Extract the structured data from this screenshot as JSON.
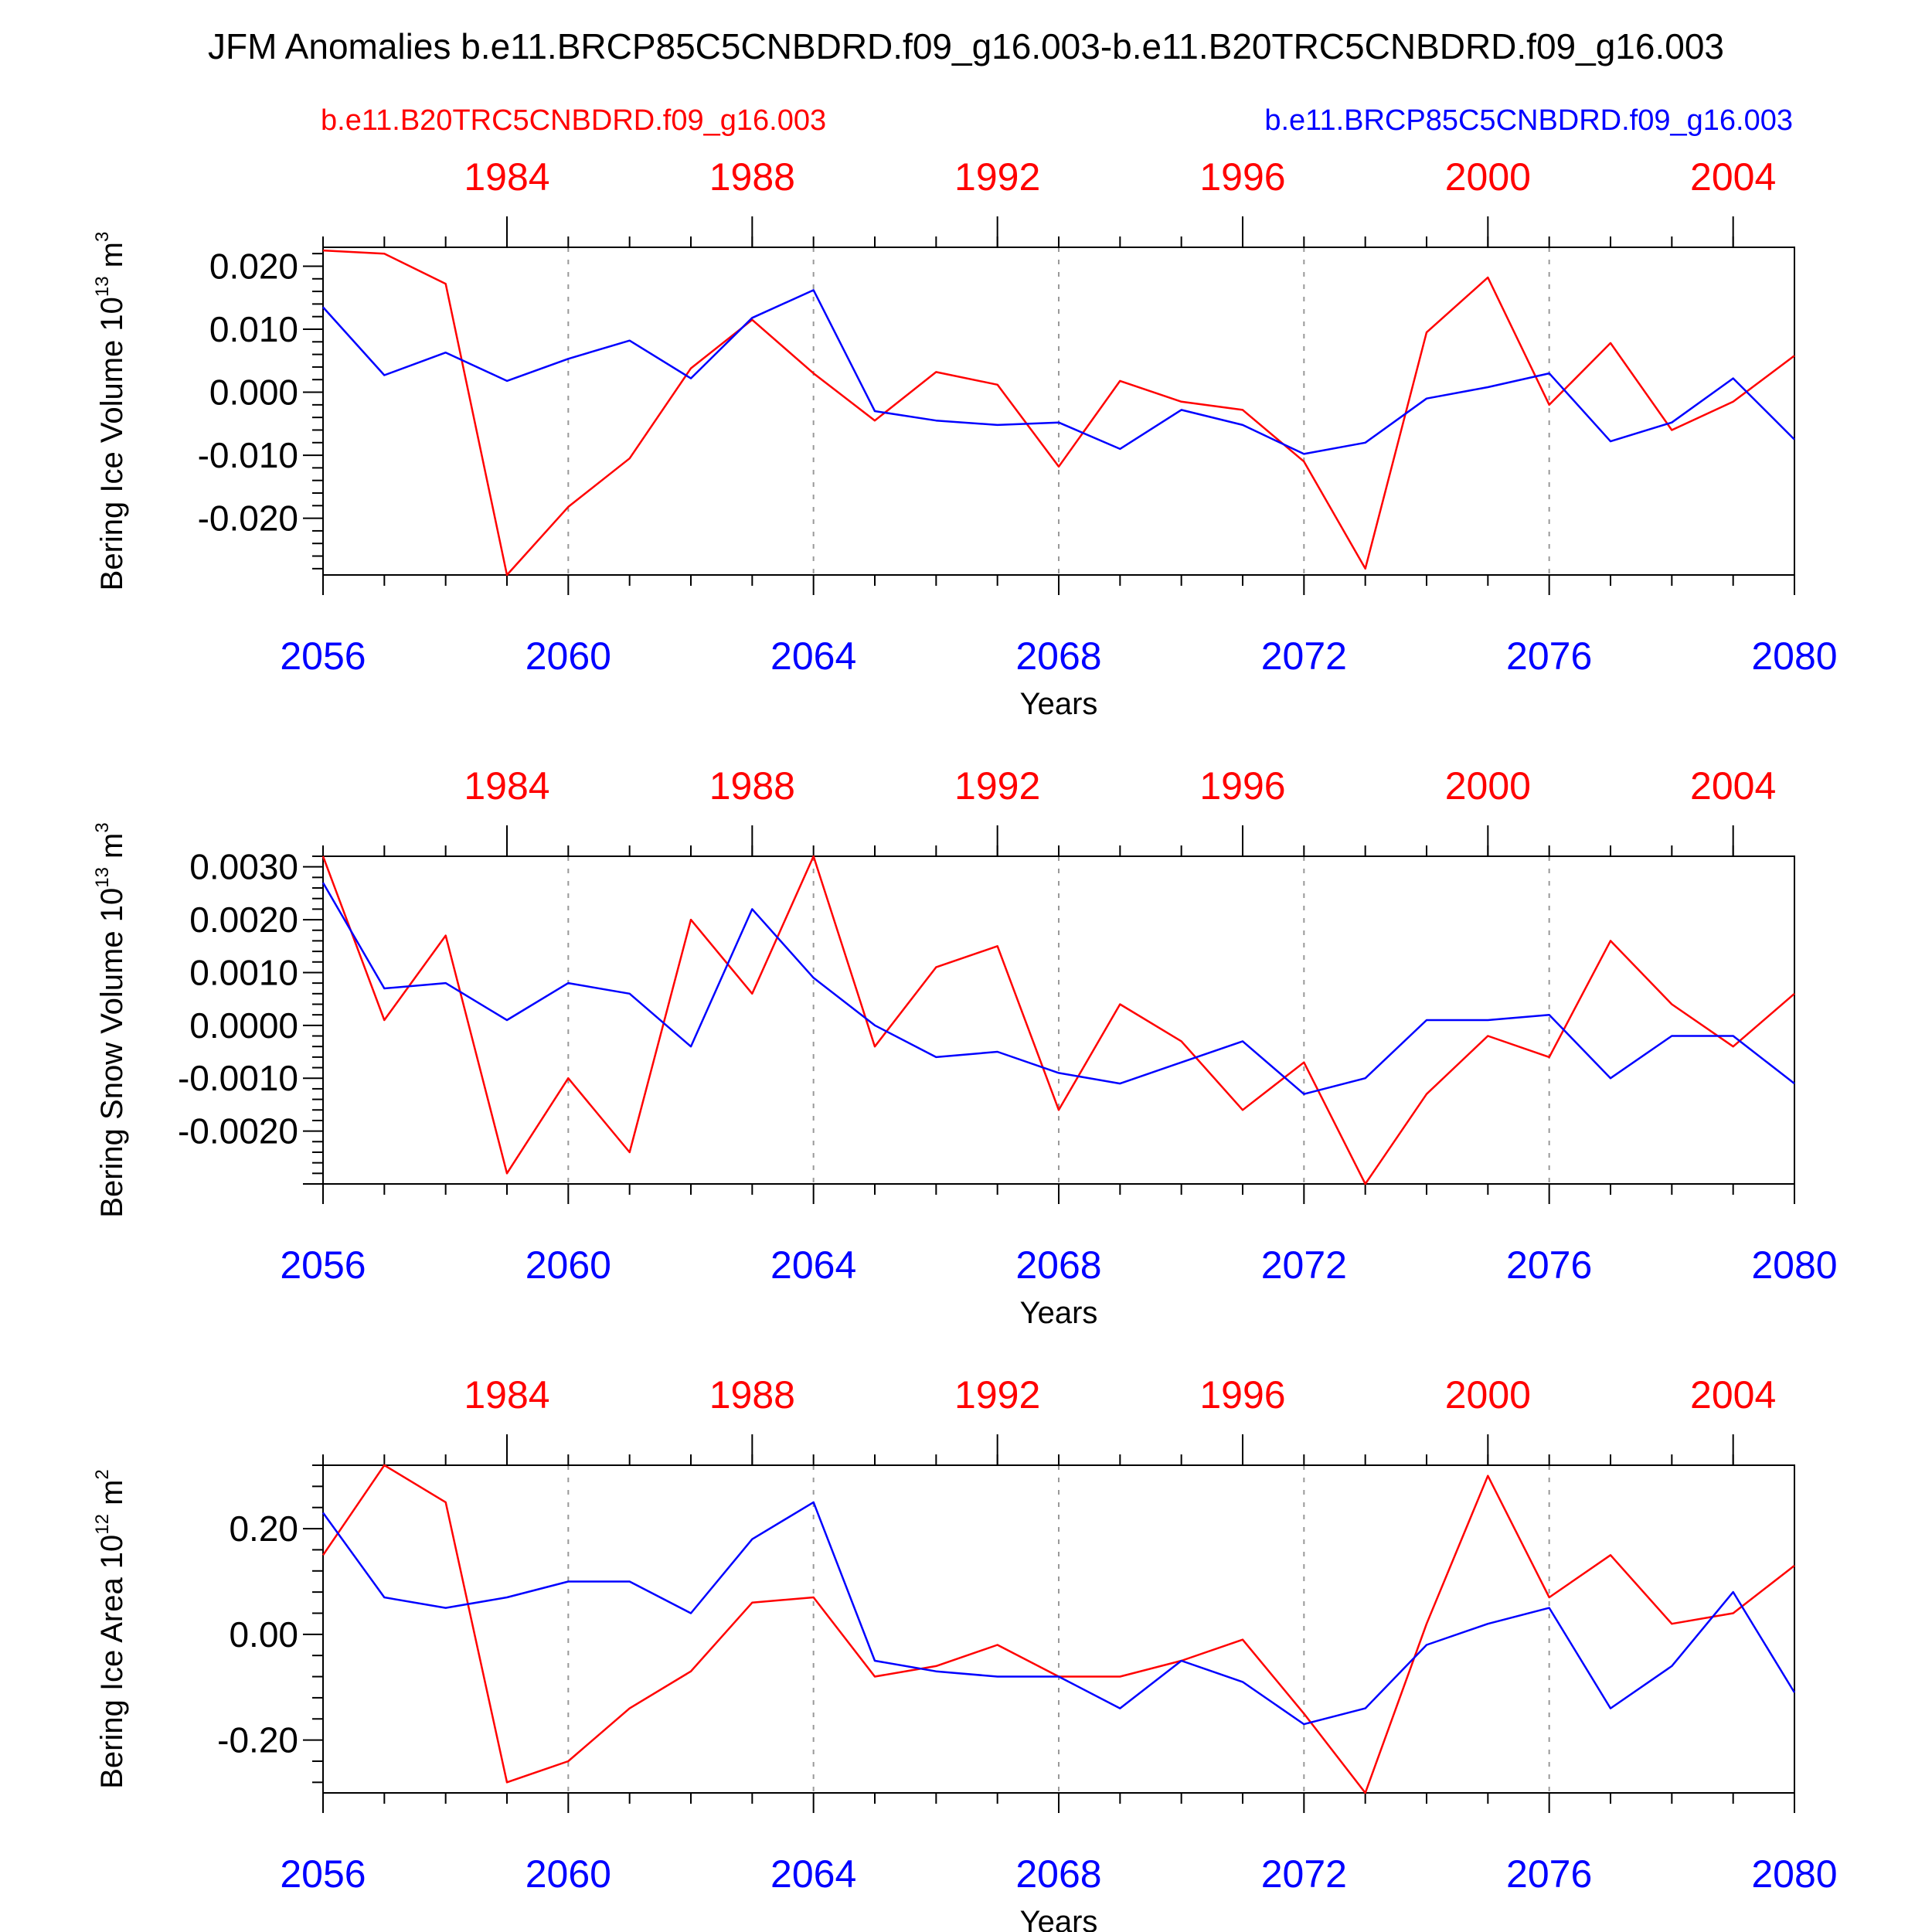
{
  "title": "JFM Anomalies b.e11.BRCP85C5CNBDRD.f09_g16.003-b.e11.B20TRC5CNBDRD.f09_g16.003",
  "legend": {
    "left": "b.e11.B20TRC5CNBDRD.f09_g16.003",
    "right": "b.e11.BRCP85C5CNBDRD.f09_g16.003"
  },
  "colors": {
    "historical": "#ff0000",
    "future": "#0000ff",
    "grid": "#999999",
    "axis": "#000000"
  },
  "chart_data": [
    {
      "type": "line",
      "ylabel": "Bering Ice Volume 10",
      "ylabel_sup": "13",
      "ylabel_unit": " m",
      "ylabel_unit_sup": "3",
      "xlabel": "Years",
      "xlim": [
        2056,
        2080
      ],
      "ylim": [
        -0.029,
        0.023
      ],
      "yticks": [
        "0.020",
        "0.010",
        "0.000",
        "-0.010",
        "-0.020"
      ],
      "ytick_values": [
        0.02,
        0.01,
        0.0,
        -0.01,
        -0.02
      ],
      "bottom_ticks": [
        "2056",
        "2060",
        "2064",
        "2068",
        "2072",
        "2076",
        "2080"
      ],
      "top_ticks": [
        "1984",
        "1988",
        "1992",
        "1996",
        "2000",
        "2004"
      ],
      "x": [
        2056,
        2057,
        2058,
        2059,
        2060,
        2061,
        2062,
        2063,
        2064,
        2065,
        2066,
        2067,
        2068,
        2069,
        2070,
        2071,
        2072,
        2073,
        2074,
        2075,
        2076,
        2077,
        2078,
        2079,
        2080
      ],
      "series": [
        {
          "name": "b.e11.B20TRC5CNBDRD.f09_g16.003",
          "color": "#ff0000",
          "values": [
            0.0225,
            0.022,
            0.0172,
            -0.029,
            -0.0182,
            -0.0105,
            0.0038,
            0.0115,
            0.003,
            -0.0045,
            0.0032,
            0.0012,
            -0.0118,
            0.0018,
            -0.0015,
            -0.0028,
            -0.011,
            -0.028,
            0.0095,
            0.0182,
            -0.002,
            0.0078,
            -0.006,
            -0.0015,
            0.0058
          ]
        },
        {
          "name": "b.e11.BRCP85C5CNBDRD.f09_g16.003",
          "color": "#0000ff",
          "values": [
            0.0135,
            0.0027,
            0.0063,
            0.0018,
            0.0053,
            0.0082,
            0.0022,
            0.0118,
            0.0162,
            -0.003,
            -0.0045,
            -0.0052,
            -0.0048,
            -0.009,
            -0.0028,
            -0.0052,
            -0.0098,
            -0.008,
            -0.001,
            0.0008,
            0.003,
            -0.0078,
            -0.0048,
            0.0022,
            -0.0075
          ]
        }
      ]
    },
    {
      "type": "line",
      "ylabel": "Bering Snow Volume 10",
      "ylabel_sup": "13",
      "ylabel_unit": " m",
      "ylabel_unit_sup": "3",
      "xlabel": "Years",
      "xlim": [
        2056,
        2080
      ],
      "ylim": [
        -0.003,
        0.0032
      ],
      "yticks": [
        "0.0030",
        "0.0020",
        "0.0010",
        "0.0000",
        "-0.0010",
        "-0.0020"
      ],
      "ytick_values": [
        0.003,
        0.002,
        0.001,
        0.0,
        -0.001,
        -0.002
      ],
      "bottom_ticks": [
        "2056",
        "2060",
        "2064",
        "2068",
        "2072",
        "2076",
        "2080"
      ],
      "top_ticks": [
        "1984",
        "1988",
        "1992",
        "1996",
        "2000",
        "2004"
      ],
      "x": [
        2056,
        2057,
        2058,
        2059,
        2060,
        2061,
        2062,
        2063,
        2064,
        2065,
        2066,
        2067,
        2068,
        2069,
        2070,
        2071,
        2072,
        2073,
        2074,
        2075,
        2076,
        2077,
        2078,
        2079,
        2080
      ],
      "series": [
        {
          "name": "b.e11.B20TRC5CNBDRD.f09_g16.003",
          "color": "#ff0000",
          "values": [
            0.0032,
            0.0001,
            0.0017,
            -0.0028,
            -0.001,
            -0.0024,
            0.002,
            0.0006,
            0.0032,
            -0.0004,
            0.0011,
            0.0015,
            -0.0016,
            0.0004,
            -0.0003,
            -0.0016,
            -0.0007,
            -0.003,
            -0.0013,
            -0.0002,
            -0.0006,
            0.0016,
            0.0004,
            -0.0004,
            0.0006
          ]
        },
        {
          "name": "b.e11.BRCP85C5CNBDRD.f09_g16.003",
          "color": "#0000ff",
          "values": [
            0.0027,
            0.0007,
            0.0008,
            0.0001,
            0.0008,
            0.0006,
            -0.0004,
            0.0022,
            0.0009,
            0.0,
            -0.0006,
            -0.0005,
            -0.0009,
            -0.0011,
            -0.0007,
            -0.0003,
            -0.0013,
            -0.001,
            0.0001,
            0.0001,
            0.0002,
            -0.001,
            -0.0002,
            -0.0002,
            -0.0011
          ]
        }
      ]
    },
    {
      "type": "line",
      "ylabel": "Bering Ice Area 10",
      "ylabel_sup": "12",
      "ylabel_unit": " m",
      "ylabel_unit_sup": "2",
      "xlabel": "Years",
      "xlim": [
        2056,
        2080
      ],
      "ylim": [
        -0.3,
        0.32
      ],
      "yticks": [
        "0.20",
        "0.00",
        "-0.20"
      ],
      "ytick_values": [
        0.2,
        0.0,
        -0.2
      ],
      "bottom_ticks": [
        "2056",
        "2060",
        "2064",
        "2068",
        "2072",
        "2076",
        "2080"
      ],
      "top_ticks": [
        "1984",
        "1988",
        "1992",
        "1996",
        "2000",
        "2004"
      ],
      "x": [
        2056,
        2057,
        2058,
        2059,
        2060,
        2061,
        2062,
        2063,
        2064,
        2065,
        2066,
        2067,
        2068,
        2069,
        2070,
        2071,
        2072,
        2073,
        2074,
        2075,
        2076,
        2077,
        2078,
        2079,
        2080
      ],
      "series": [
        {
          "name": "b.e11.B20TRC5CNBDRD.f09_g16.003",
          "color": "#ff0000",
          "values": [
            0.15,
            0.32,
            0.25,
            -0.28,
            -0.24,
            -0.14,
            -0.07,
            0.06,
            0.07,
            -0.08,
            -0.06,
            -0.02,
            -0.08,
            -0.08,
            -0.05,
            -0.01,
            -0.15,
            -0.3,
            0.02,
            0.3,
            0.07,
            0.15,
            0.02,
            0.04,
            0.13
          ]
        },
        {
          "name": "b.e11.BRCP85C5CNBDRD.f09_g16.003",
          "color": "#0000ff",
          "values": [
            0.23,
            0.07,
            0.05,
            0.07,
            0.1,
            0.1,
            0.04,
            0.18,
            0.25,
            -0.05,
            -0.07,
            -0.08,
            -0.08,
            -0.14,
            -0.05,
            -0.09,
            -0.17,
            -0.14,
            -0.02,
            0.02,
            0.05,
            -0.14,
            -0.06,
            0.08,
            -0.11
          ]
        }
      ]
    }
  ]
}
